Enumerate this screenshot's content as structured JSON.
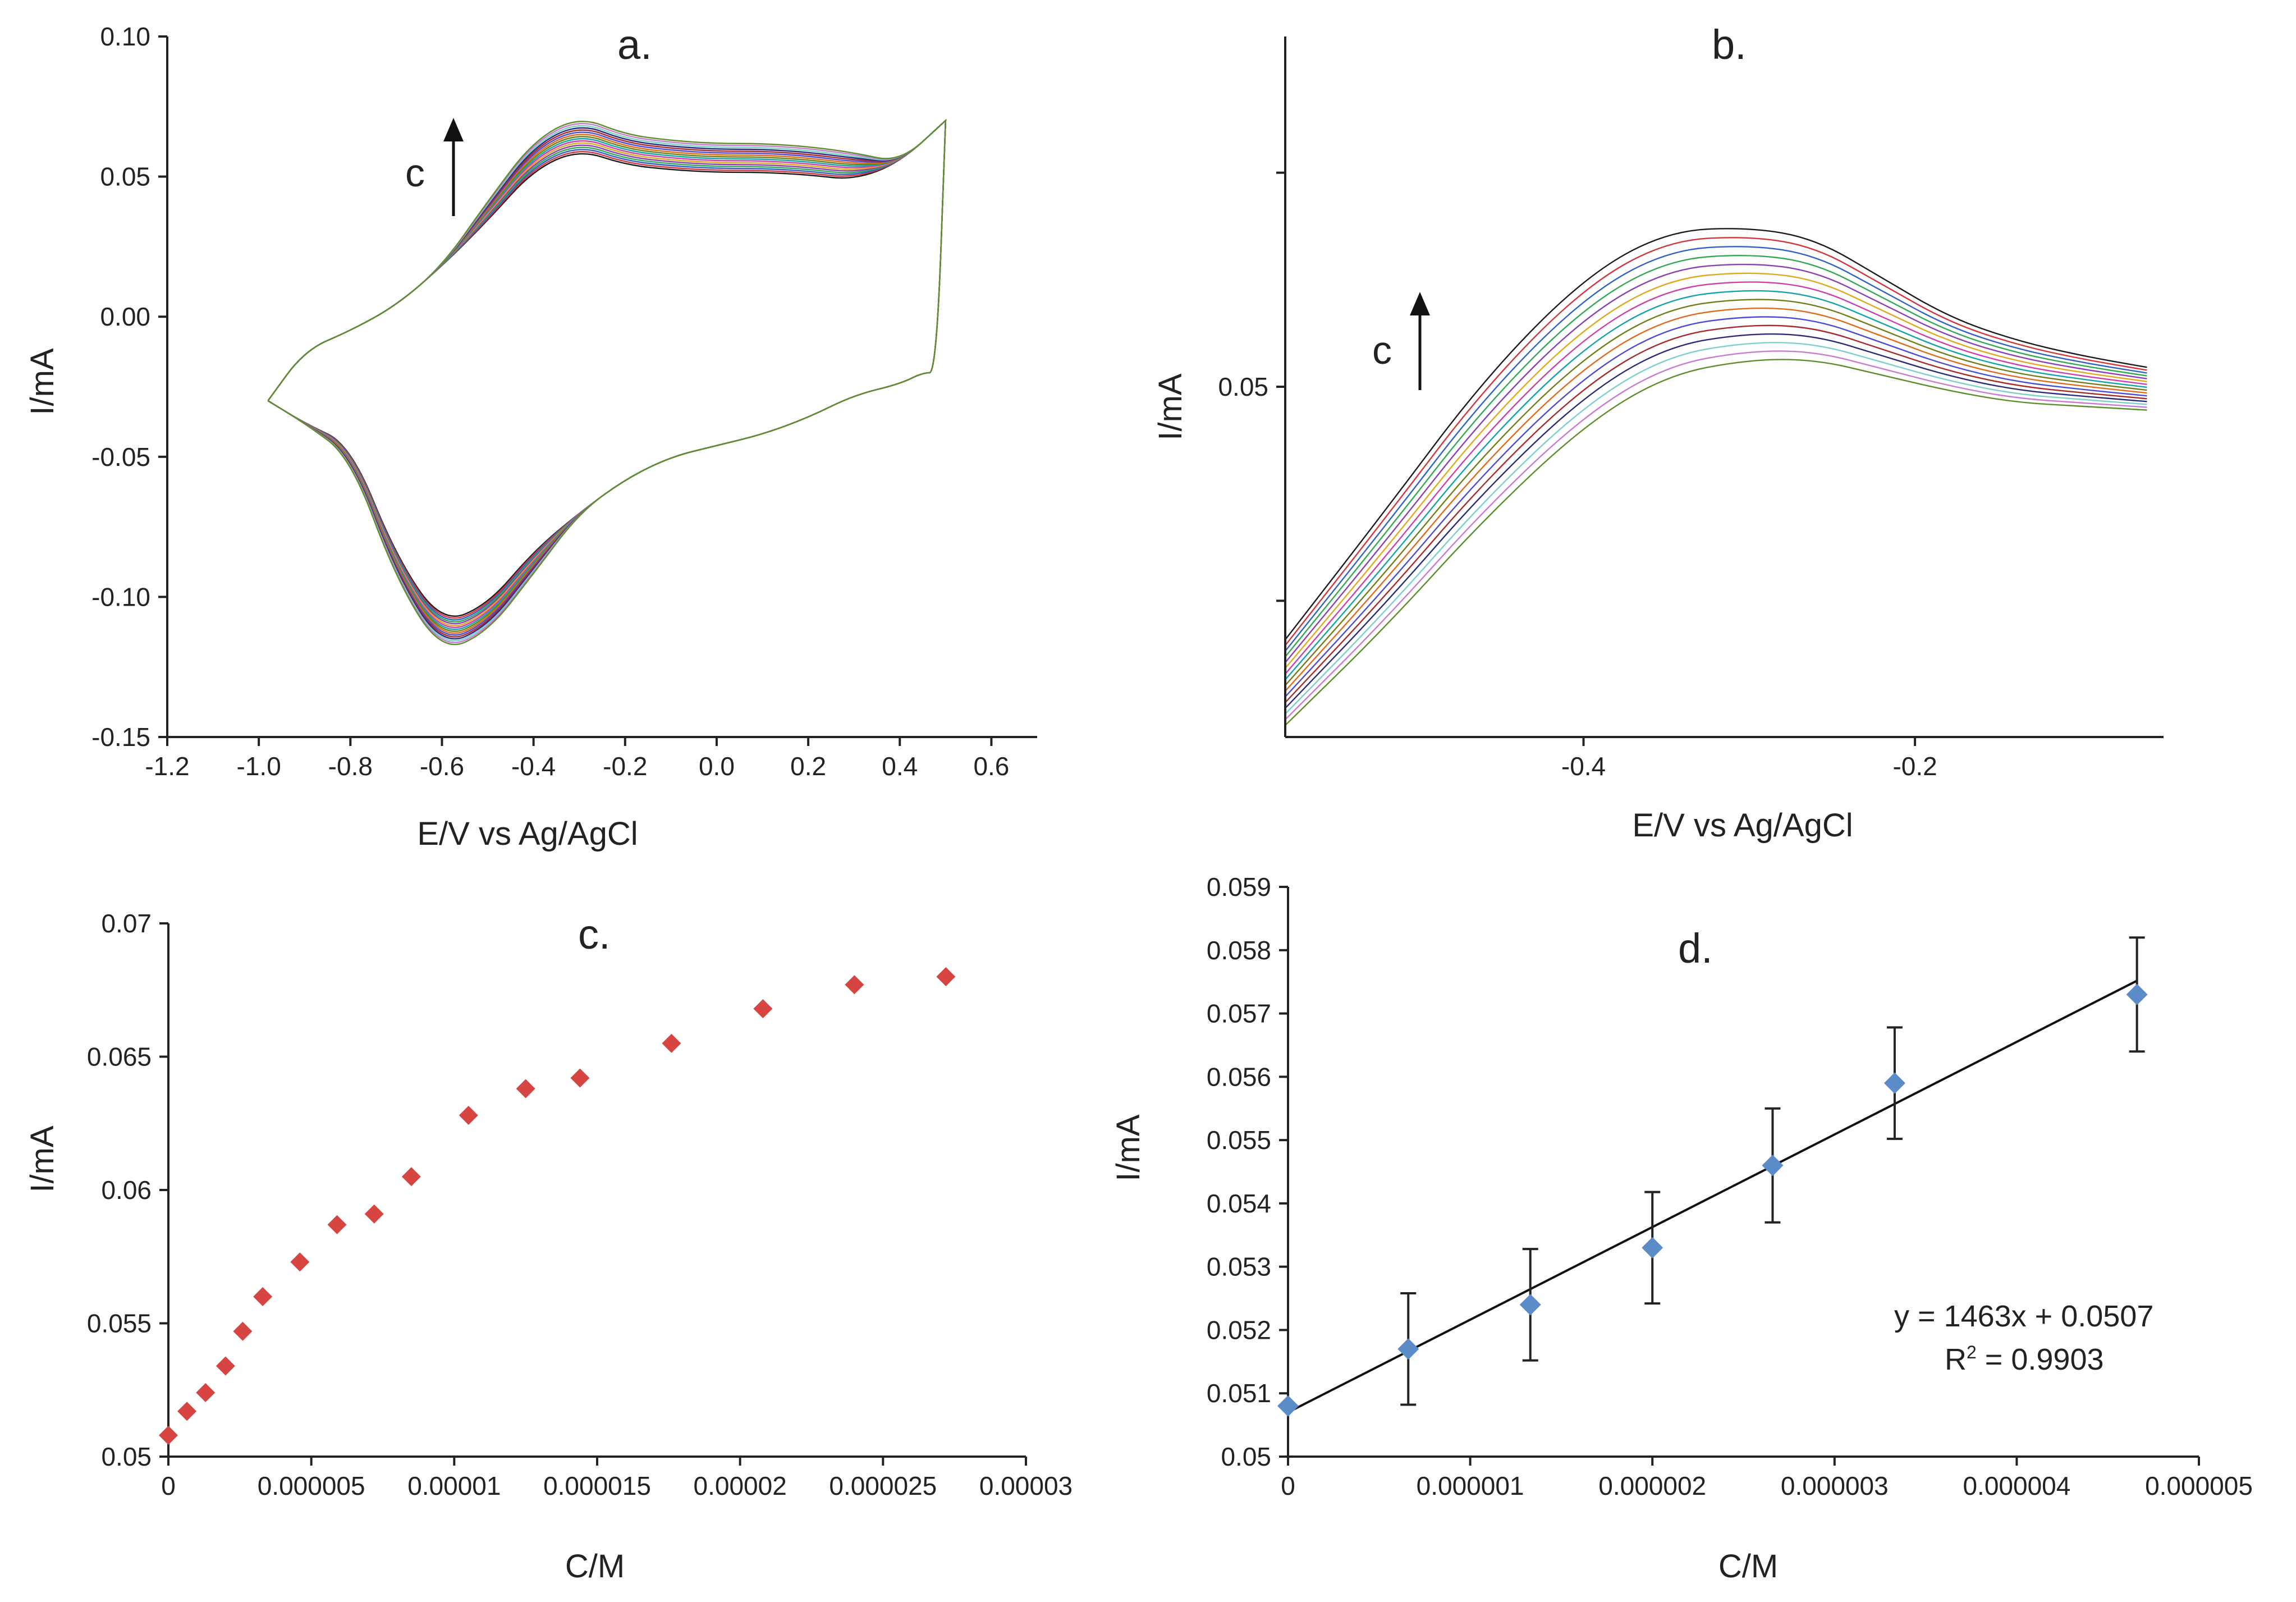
{
  "palette": {
    "curves": [
      "#1a1a1a",
      "#d4343c",
      "#2f62c9",
      "#32a852",
      "#8a3fb3",
      "#e0a81c",
      "#cc3fae",
      "#13a3a8",
      "#6f7f16",
      "#e06a1c",
      "#4b4bd6",
      "#a82a2a",
      "#2a2a7a",
      "#7ad1c9",
      "#c97ad1",
      "#5b8f2a"
    ],
    "scatter_c": "#d64541",
    "scatter_d": "#5b8cc8"
  },
  "chart_data": [
    {
      "panel": "a",
      "type": "line",
      "title": "a.",
      "xlabel": "E/V vs Ag/AgCl",
      "ylabel": "I/mA",
      "xlim": [
        -1.2,
        0.7
      ],
      "ylim": [
        -0.15,
        0.1
      ],
      "xticks": [
        "-1.2",
        "-1.0",
        "-0.8",
        "-0.6",
        "-0.4",
        "-0.2",
        "0.0",
        "0.2",
        "0.4",
        "0.6"
      ],
      "yticks": [
        "-0.15",
        "-0.10",
        "-0.05",
        "0.00",
        "0.05",
        "0.10"
      ],
      "annotation": "c",
      "series_count": 16,
      "forward_scan": {
        "x": [
          -0.98,
          -0.9,
          -0.8,
          -0.7,
          -0.6,
          -0.5,
          -0.4,
          -0.3,
          -0.2,
          -0.1,
          0.0,
          0.1,
          0.2,
          0.3,
          0.4,
          0.5
        ],
        "y": [
          -0.03,
          -0.012,
          -0.005,
          0.004,
          0.018,
          0.038,
          0.058,
          0.066,
          0.06,
          0.058,
          0.057,
          0.057,
          0.056,
          0.054,
          0.055,
          0.07
        ]
      },
      "reverse_scan": {
        "x": [
          0.5,
          0.48,
          0.45,
          0.4,
          0.3,
          0.2,
          0.1,
          0.0,
          -0.1,
          -0.2,
          -0.3,
          -0.4,
          -0.5,
          -0.6,
          -0.7,
          -0.8,
          -0.9,
          -0.98
        ],
        "y": [
          0.07,
          -0.02,
          -0.02,
          -0.024,
          -0.028,
          -0.036,
          -0.042,
          -0.046,
          -0.05,
          -0.058,
          -0.07,
          -0.088,
          -0.108,
          -0.115,
          -0.09,
          -0.048,
          -0.038,
          -0.03
        ]
      }
    },
    {
      "panel": "b",
      "type": "line",
      "title": "b.",
      "xlabel": "E/V vs Ag/AgCl",
      "ylabel": "I/mA",
      "xlim": [
        -0.58,
        -0.05
      ],
      "ylim": [
        0.041,
        0.059
      ],
      "xticks": [
        "-0.4",
        "-0.2"
      ],
      "yticks": [
        "0.05"
      ],
      "annotation": "c",
      "series_count": 16,
      "curve_x": [
        -0.58,
        -0.52,
        -0.46,
        -0.4,
        -0.35,
        -0.3,
        -0.26,
        -0.22,
        -0.18,
        -0.14,
        -0.1,
        -0.06
      ],
      "curve_y_top": [
        0.0435,
        0.0468,
        0.0502,
        0.0528,
        0.054,
        0.0541,
        0.0538,
        0.0528,
        0.0518,
        0.0512,
        0.0508,
        0.0505
      ],
      "curve_y_bottom": [
        0.0413,
        0.0438,
        0.0466,
        0.049,
        0.0503,
        0.0507,
        0.0507,
        0.0503,
        0.0499,
        0.0496,
        0.0495,
        0.0494
      ]
    },
    {
      "panel": "c",
      "type": "scatter",
      "title": "c.",
      "xlabel": "C/M",
      "ylabel": "I/mA",
      "xlim": [
        0,
        3e-05
      ],
      "ylim": [
        0.05,
        0.07
      ],
      "xticks": [
        "0",
        "0.000005",
        "0.00001",
        "0.000015",
        "0.00002",
        "0.000025",
        "0.00003"
      ],
      "yticks": [
        "0.05",
        "0.055",
        "0.06",
        "0.065",
        "0.07"
      ],
      "x": [
        0,
        6.5e-07,
        1.3e-06,
        2e-06,
        2.6e-06,
        3.3e-06,
        4.6e-06,
        5.9e-06,
        7.2e-06,
        8.5e-06,
        1.05e-05,
        1.25e-05,
        1.44e-05,
        1.76e-05,
        2.08e-05,
        2.4e-05,
        2.72e-05
      ],
      "y": [
        0.0508,
        0.0517,
        0.0524,
        0.0534,
        0.0547,
        0.056,
        0.0573,
        0.0587,
        0.0591,
        0.0605,
        0.0628,
        0.0638,
        0.0642,
        0.0655,
        0.0668,
        0.0677,
        0.068
      ]
    },
    {
      "panel": "d",
      "type": "scatter",
      "title": "d.",
      "xlabel": "C/M",
      "ylabel": "I/mA",
      "xlim": [
        0,
        5e-06
      ],
      "ylim": [
        0.05,
        0.059
      ],
      "xticks": [
        "0",
        "0.000001",
        "0.000002",
        "0.000003",
        "0.000004",
        "0.000005"
      ],
      "yticks": [
        "0.05",
        "0.051",
        "0.052",
        "0.053",
        "0.054",
        "0.055",
        "0.056",
        "0.057",
        "0.058",
        "0.059"
      ],
      "x": [
        0,
        6.6e-07,
        1.33e-06,
        2e-06,
        2.66e-06,
        3.33e-06,
        4.66e-06
      ],
      "y": [
        0.0508,
        0.0517,
        0.0524,
        0.0533,
        0.0546,
        0.0559,
        0.0573
      ],
      "error": [
        0,
        0.00088,
        0.00088,
        0.00088,
        0.0009,
        0.00088,
        0.0009
      ],
      "trendline": {
        "slope": 1463,
        "intercept": 0.0507
      },
      "equation": "y = 1463x + 0.0507",
      "r2_label": "R",
      "r2_sup": "2",
      "r2_value": " = 0.9903"
    }
  ]
}
